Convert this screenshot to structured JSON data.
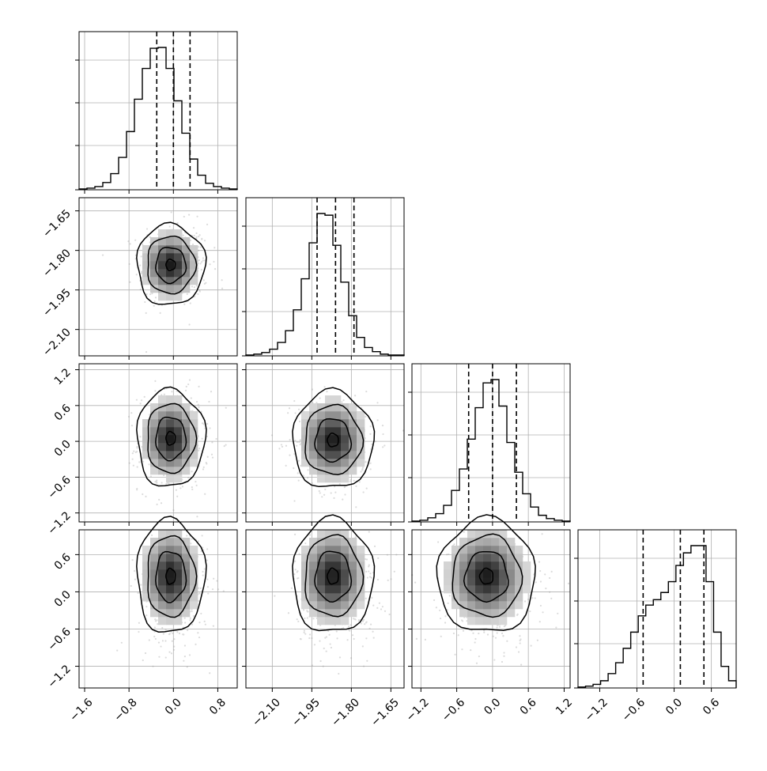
{
  "chart_data": {
    "type": "corner",
    "grid": true,
    "colors": {
      "ink": "#000000",
      "grid": "#b0b0b0",
      "density_light": "#f2f2f2",
      "density_dark": "#222222",
      "scatter": "#9a9a9a"
    },
    "parameters": [
      {
        "index": 0,
        "mean": 0.0,
        "sd": 0.3,
        "q16": -0.3,
        "q50": 0.0,
        "q84": 0.3,
        "range": [
          -1.7,
          1.15
        ],
        "ticks": [
          "−1.6",
          "−0.8",
          "0.0",
          "0.8"
        ]
      },
      {
        "index": 1,
        "mean": -1.855,
        "sd": 0.075,
        "q16": -1.93,
        "q50": -1.86,
        "q84": -1.79,
        "range": [
          -2.2,
          -1.6
        ],
        "ticks": [
          "−2.10",
          "−1.95",
          "−1.80",
          "−1.65"
        ]
      },
      {
        "index": 2,
        "mean": 0.0,
        "sd": 0.4,
        "q16": -0.4,
        "q50": 0.0,
        "q84": 0.4,
        "range": [
          -1.35,
          1.3
        ],
        "ticks": [
          "−1.2",
          "−0.6",
          "0.0",
          "0.6",
          "1.2"
        ]
      },
      {
        "index": 3,
        "mean": 0.05,
        "sd": 0.45,
        "q16": -0.5,
        "q50": 0.1,
        "q84": 0.48,
        "range": [
          -1.55,
          1.0
        ],
        "ticks": [
          "−1.2",
          "−0.6",
          "0.0",
          "0.6"
        ]
      }
    ],
    "histograms": [
      {
        "param": 0,
        "values": [
          1,
          2,
          4,
          9,
          20,
          40,
          72,
          112,
          150,
          175,
          176,
          150,
          110,
          70,
          38,
          18,
          8,
          4,
          2,
          1
        ]
      },
      {
        "param": 1,
        "values": [
          1,
          2,
          4,
          8,
          16,
          30,
          55,
          92,
          135,
          170,
          168,
          132,
          88,
          48,
          22,
          10,
          5,
          2,
          1,
          1
        ]
      },
      {
        "param": 2,
        "values": [
          1,
          2,
          5,
          10,
          20,
          38,
          64,
          100,
          138,
          168,
          172,
          140,
          96,
          60,
          34,
          18,
          8,
          4,
          2,
          1
        ]
      },
      {
        "param": 3,
        "values": [
          1,
          2,
          4,
          8,
          16,
          28,
          44,
          62,
          80,
          92,
          98,
          106,
          118,
          136,
          150,
          158,
          158,
          118,
          62,
          24,
          8
        ]
      }
    ],
    "panels_2d": [
      {
        "x_param": 0,
        "y_param": 1,
        "correlation": 0.0,
        "peak": [
          -0.05,
          -1.855
        ]
      },
      {
        "x_param": 0,
        "y_param": 2,
        "correlation": 0.0,
        "peak": [
          -0.05,
          0.05
        ]
      },
      {
        "x_param": 1,
        "y_param": 2,
        "correlation": 0.0,
        "peak": [
          -1.87,
          0.02
        ]
      },
      {
        "x_param": 0,
        "y_param": 3,
        "correlation": 0.0,
        "peak": [
          -0.05,
          0.25
        ]
      },
      {
        "x_param": 1,
        "y_param": 3,
        "correlation": 0.0,
        "peak": [
          -1.87,
          0.25
        ]
      },
      {
        "x_param": 2,
        "y_param": 3,
        "correlation": 0.0,
        "peak": [
          -0.1,
          0.25
        ]
      }
    ],
    "contour_levels": [
      0.12,
      0.39,
      0.68,
      0.93
    ]
  }
}
